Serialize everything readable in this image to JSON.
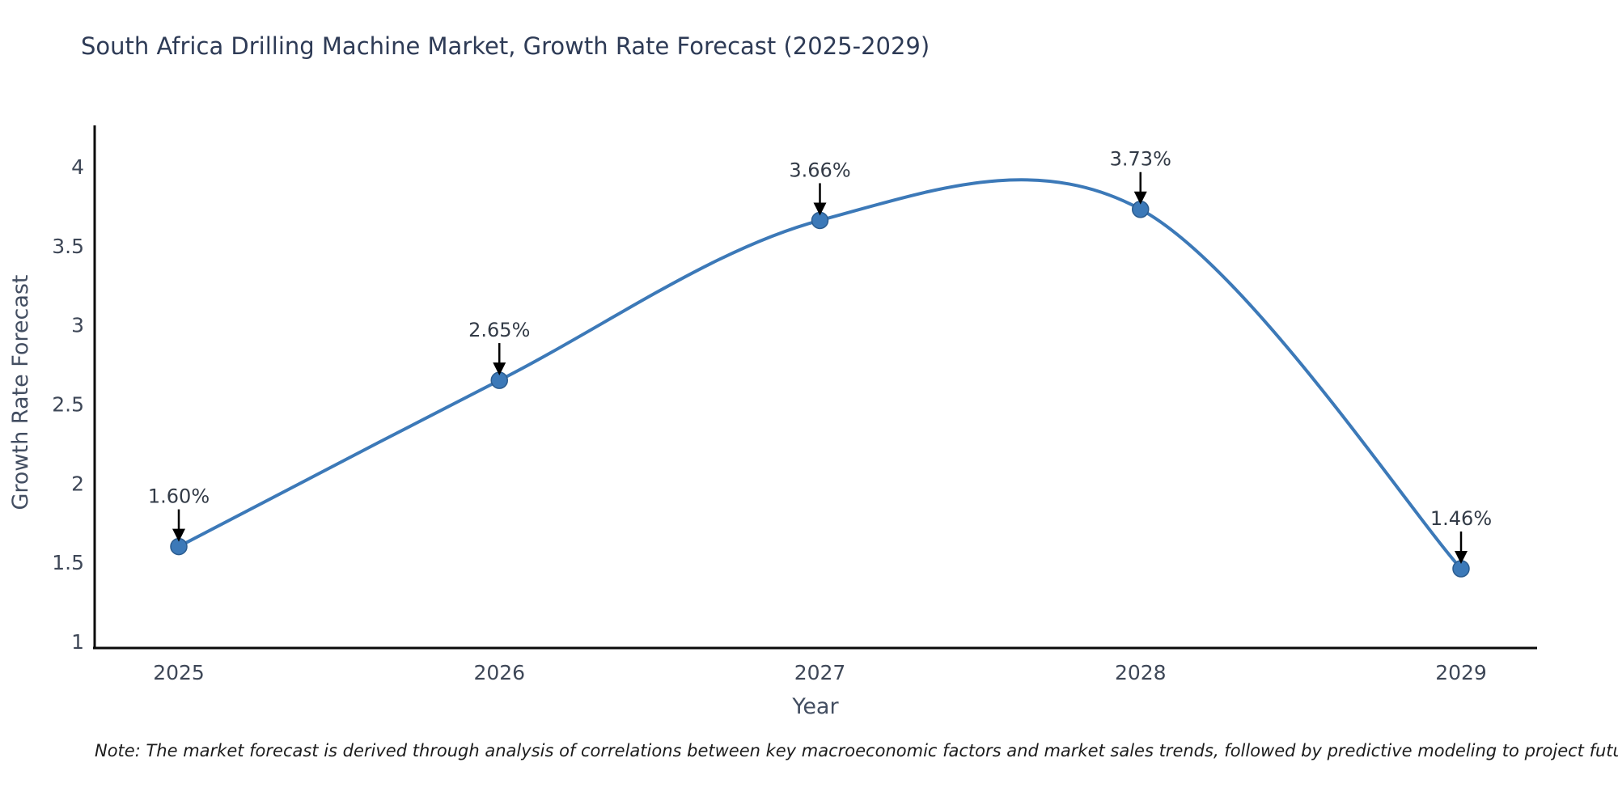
{
  "title": "South Africa Drilling Machine Market, Growth Rate Forecast (2025-2029)",
  "note": "Note: The market forecast is derived through analysis of correlations between key macroeconomic factors and market sales trends, followed by predictive modeling to project future sales",
  "chart_data": {
    "type": "line",
    "x": [
      2025,
      2026,
      2027,
      2028,
      2029
    ],
    "values": [
      1.6,
      2.65,
      3.66,
      3.73,
      1.46
    ],
    "point_labels": [
      "1.60%",
      "2.65%",
      "3.66%",
      "3.73%",
      "1.46%"
    ],
    "title": "South Africa Drilling Machine Market, Growth Rate Forecast (2025-2029)",
    "xlabel": "Year",
    "ylabel": "Growth Rate Forecast",
    "ylim": [
      1,
      4
    ],
    "yticks": [
      1,
      1.5,
      2,
      2.5,
      3,
      3.5,
      4
    ],
    "grid": false,
    "legend": "none",
    "smooth": true,
    "line_color": "#3c79b8",
    "marker_color": "#3c79b8",
    "marker_edge_color": "#2b5c8f",
    "annotation_color": "#000000",
    "axis_color": "#0a0a0a",
    "tick_color": "#3e4757",
    "label_color": "#434e61",
    "point_label_color": "#333b47"
  }
}
